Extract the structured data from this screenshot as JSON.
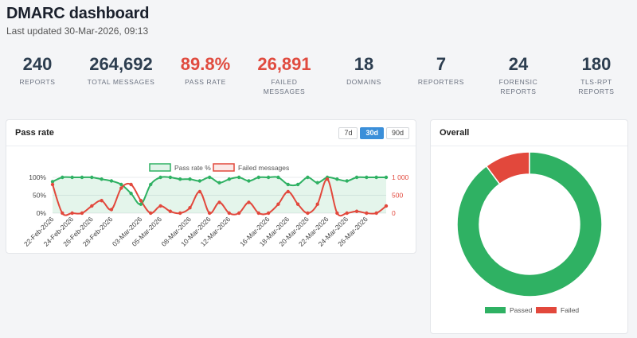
{
  "header": {
    "title": "DMARC dashboard",
    "updated": "Last updated 30-Mar-2026, 09:13"
  },
  "stats": [
    {
      "value": "240",
      "label": "REPORTS",
      "label2": "",
      "highlight": false
    },
    {
      "value": "264,692",
      "label": "TOTAL MESSAGES",
      "label2": "",
      "highlight": false
    },
    {
      "value": "89.8%",
      "label": "PASS RATE",
      "label2": "",
      "highlight": true
    },
    {
      "value": "26,891",
      "label": "FAILED",
      "label2": "MESSAGES",
      "highlight": true
    },
    {
      "value": "18",
      "label": "DOMAINS",
      "label2": "",
      "highlight": false
    },
    {
      "value": "7",
      "label": "REPORTERS",
      "label2": "",
      "highlight": false
    },
    {
      "value": "24",
      "label": "FORENSIC",
      "label2": "REPORTS",
      "highlight": false
    },
    {
      "value": "180",
      "label": "TLS-RPT",
      "label2": "REPORTS",
      "highlight": false
    }
  ],
  "pass_card": {
    "title": "Pass rate",
    "ranges": [
      {
        "label": "7d",
        "active": false
      },
      {
        "label": "30d",
        "active": true
      },
      {
        "label": "90d",
        "active": false
      }
    ]
  },
  "overall_card": {
    "title": "Overall"
  },
  "colors": {
    "pass": "#2fb163",
    "fail": "#e2483c",
    "accent": "#3b8fd9"
  },
  "chart_data": [
    {
      "type": "line",
      "legend": [
        "Pass rate %",
        "Failed messages"
      ],
      "x": [
        "22-Feb-2026",
        "23-Feb-2026",
        "24-Feb-2026",
        "25-Feb-2026",
        "26-Feb-2026",
        "27-Feb-2026",
        "28-Feb-2026",
        "01-Mar-2026",
        "02-Mar-2026",
        "03-Mar-2026",
        "04-Mar-2026",
        "05-Mar-2026",
        "06-Mar-2026",
        "07-Mar-2026",
        "08-Mar-2026",
        "09-Mar-2026",
        "10-Mar-2026",
        "11-Mar-2026",
        "12-Mar-2026",
        "13-Mar-2026",
        "14-Mar-2026",
        "15-Mar-2026",
        "16-Mar-2026",
        "17-Mar-2026",
        "18-Mar-2026",
        "19-Mar-2026",
        "20-Mar-2026",
        "21-Mar-2026",
        "22-Mar-2026",
        "23-Mar-2026",
        "24-Mar-2026",
        "25-Mar-2026",
        "26-Mar-2026",
        "27-Mar-2026",
        "28-Mar-2026"
      ],
      "x_tick_labels": [
        "22-Feb-2026",
        "24-Feb-2026",
        "26-Feb-2026",
        "28-Feb-2026",
        "03-Mar-2026",
        "05-Mar-2026",
        "08-Mar-2026",
        "10-Mar-2026",
        "12-Mar-2026",
        "16-Mar-2026",
        "18-Mar-2026",
        "20-Mar-2026",
        "22-Mar-2026",
        "24-Mar-2026",
        "26-Mar-2026"
      ],
      "series": [
        {
          "name": "Pass rate %",
          "axis": "left",
          "values": [
            88,
            100,
            100,
            100,
            100,
            95,
            90,
            80,
            55,
            25,
            80,
            100,
            100,
            95,
            95,
            90,
            100,
            85,
            95,
            100,
            90,
            100,
            100,
            100,
            80,
            80,
            100,
            85,
            100,
            95,
            90,
            100,
            100,
            100,
            100
          ]
        },
        {
          "name": "Failed messages",
          "axis": "right",
          "values": [
            800,
            0,
            0,
            0,
            200,
            350,
            100,
            700,
            800,
            350,
            0,
            200,
            50,
            0,
            150,
            600,
            0,
            300,
            0,
            0,
            300,
            0,
            0,
            250,
            600,
            250,
            0,
            250,
            950,
            0,
            0,
            50,
            0,
            0,
            200
          ]
        }
      ],
      "y_left": {
        "ticks": [
          "100%",
          "50%",
          "0%"
        ],
        "range": [
          0,
          100
        ]
      },
      "y_right": {
        "ticks": [
          "1 000",
          "500",
          "0"
        ],
        "range": [
          0,
          1000
        ]
      }
    },
    {
      "type": "pie",
      "labels": [
        "Passed",
        "Failed"
      ],
      "values": [
        237801,
        26891
      ],
      "legend": [
        "Passed",
        "Failed"
      ]
    }
  ]
}
